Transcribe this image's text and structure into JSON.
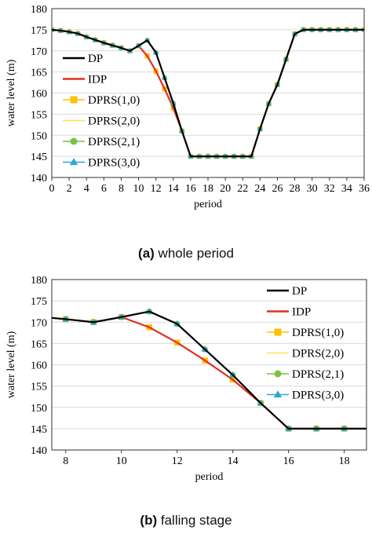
{
  "captions": {
    "a_tag": "(a)",
    "a_text": "whole period",
    "b_tag": "(b)",
    "b_text": "falling stage"
  },
  "chart_data": [
    {
      "type": "line",
      "panel": "a",
      "xlabel": "period",
      "ylabel": "water level (m)",
      "xlim": [
        0,
        36
      ],
      "ylim": [
        140,
        180
      ],
      "xticks": [
        0,
        2,
        4,
        6,
        8,
        10,
        12,
        14,
        16,
        18,
        20,
        22,
        24,
        26,
        28,
        30,
        32,
        34,
        36
      ],
      "yticks": [
        140,
        145,
        150,
        155,
        160,
        165,
        170,
        175,
        180
      ],
      "grid": "horizontal",
      "legend_position": "left",
      "x": [
        0,
        1,
        2,
        3,
        4,
        5,
        6,
        7,
        8,
        9,
        10,
        11,
        12,
        13,
        14,
        15,
        16,
        17,
        18,
        19,
        20,
        21,
        22,
        23,
        24,
        25,
        26,
        27,
        28,
        29,
        30,
        31,
        32,
        33,
        34,
        35,
        36
      ],
      "series": [
        {
          "name": "DP",
          "color": "#000000",
          "marker": "none",
          "values": [
            175,
            174.8,
            174.5,
            174.1,
            173.3,
            172.6,
            171.9,
            171.3,
            170.7,
            170,
            171.2,
            172.5,
            169.6,
            163.6,
            157.6,
            151,
            145,
            145,
            145,
            145,
            145,
            145,
            145,
            145,
            151.5,
            157.5,
            162,
            168,
            174,
            175,
            175,
            175,
            175,
            175,
            175,
            175,
            175
          ]
        },
        {
          "name": "IDP",
          "color": "#e03020",
          "marker": "none",
          "values": [
            175,
            174.8,
            174.5,
            174.1,
            173.3,
            172.6,
            171.9,
            171.3,
            170.7,
            170,
            171.2,
            168.8,
            165.2,
            161,
            156.5,
            151,
            145,
            145,
            145,
            145,
            145,
            145,
            145,
            145,
            151.5,
            157.5,
            162,
            168,
            174,
            175,
            175,
            175,
            175,
            175,
            175,
            175,
            175
          ]
        },
        {
          "name": "DPRS(1,0)",
          "color": "#ffc000",
          "marker": "square",
          "values": [
            175,
            174.8,
            174.5,
            174.1,
            173.3,
            172.6,
            171.9,
            171.3,
            170.7,
            170,
            171.2,
            168.8,
            165.2,
            161,
            156.5,
            151,
            145,
            145,
            145,
            145,
            145,
            145,
            145,
            145,
            151.5,
            157.5,
            162,
            168,
            174,
            175,
            175,
            175,
            175,
            175,
            175,
            175,
            175
          ]
        },
        {
          "name": "DPRS(2,0)",
          "color": "#ffe14a",
          "marker": "none",
          "values": [
            175,
            174.8,
            174.5,
            174.1,
            173.3,
            172.6,
            171.9,
            171.3,
            170.7,
            170,
            171.2,
            168.8,
            165.2,
            161,
            156.5,
            151,
            145,
            145,
            145,
            145,
            145,
            145,
            145,
            145,
            151.5,
            157.5,
            162,
            168,
            174,
            175,
            175,
            175,
            175,
            175,
            175,
            175,
            175
          ]
        },
        {
          "name": "DPRS(2,1)",
          "color": "#7ac143",
          "marker": "circle",
          "values": [
            175,
            174.8,
            174.5,
            174.1,
            173.3,
            172.6,
            171.9,
            171.3,
            170.7,
            170,
            171.2,
            172.5,
            169.6,
            163.6,
            157.6,
            151,
            145,
            145,
            145,
            145,
            145,
            145,
            145,
            145,
            151.5,
            157.5,
            162,
            168,
            174,
            175,
            175,
            175,
            175,
            175,
            175,
            175,
            175
          ]
        },
        {
          "name": "DPRS(3,0)",
          "color": "#2ba6d8",
          "marker": "triangle",
          "values": [
            175,
            174.8,
            174.5,
            174.1,
            173.3,
            172.6,
            171.9,
            171.3,
            170.7,
            170,
            171.2,
            172.5,
            169.6,
            163.6,
            157.6,
            151,
            145,
            145,
            145,
            145,
            145,
            145,
            145,
            145,
            151.5,
            157.5,
            162,
            168,
            174,
            175,
            175,
            175,
            175,
            175,
            175,
            175,
            175
          ]
        }
      ]
    },
    {
      "type": "line",
      "panel": "b",
      "xlabel": "period",
      "ylabel": "water level (m)",
      "xlim": [
        7.5,
        18.8
      ],
      "ylim": [
        140,
        180
      ],
      "xticks": [
        8,
        10,
        12,
        14,
        16,
        18
      ],
      "yticks": [
        140,
        145,
        150,
        155,
        160,
        165,
        170,
        175,
        180
      ],
      "grid": "horizontal",
      "legend_position": "right",
      "x": [
        7.5,
        8,
        9,
        10,
        11,
        12,
        13,
        14,
        15,
        16,
        17,
        18,
        18.8
      ],
      "series": [
        {
          "name": "DP",
          "color": "#000000",
          "marker": "none",
          "values": [
            171,
            170.7,
            170,
            171.2,
            172.5,
            169.6,
            163.6,
            157.6,
            151,
            145,
            145,
            145,
            145
          ]
        },
        {
          "name": "IDP",
          "color": "#e03020",
          "marker": "none",
          "values": [
            171,
            170.7,
            170,
            171.2,
            168.8,
            165.2,
            161,
            156.5,
            151,
            145,
            145,
            145,
            145
          ]
        },
        {
          "name": "DPRS(1,0)",
          "color": "#ffc000",
          "marker": "square",
          "values": [
            171,
            170.7,
            170,
            171.2,
            168.8,
            165.2,
            161,
            156.5,
            151,
            145,
            145,
            145,
            145
          ]
        },
        {
          "name": "DPRS(2,0)",
          "color": "#ffe14a",
          "marker": "none",
          "values": [
            171,
            170.7,
            170,
            171.2,
            168.8,
            165.2,
            161,
            156.5,
            151,
            145,
            145,
            145,
            145
          ]
        },
        {
          "name": "DPRS(2,1)",
          "color": "#7ac143",
          "marker": "circle",
          "values": [
            171,
            170.7,
            170,
            171.2,
            172.5,
            169.6,
            163.6,
            157.6,
            151,
            145,
            145,
            145,
            145
          ]
        },
        {
          "name": "DPRS(3,0)",
          "color": "#2ba6d8",
          "marker": "triangle",
          "values": [
            171,
            170.7,
            170,
            171.2,
            172.5,
            169.6,
            163.6,
            157.6,
            151,
            145,
            145,
            145,
            145
          ]
        }
      ]
    }
  ]
}
